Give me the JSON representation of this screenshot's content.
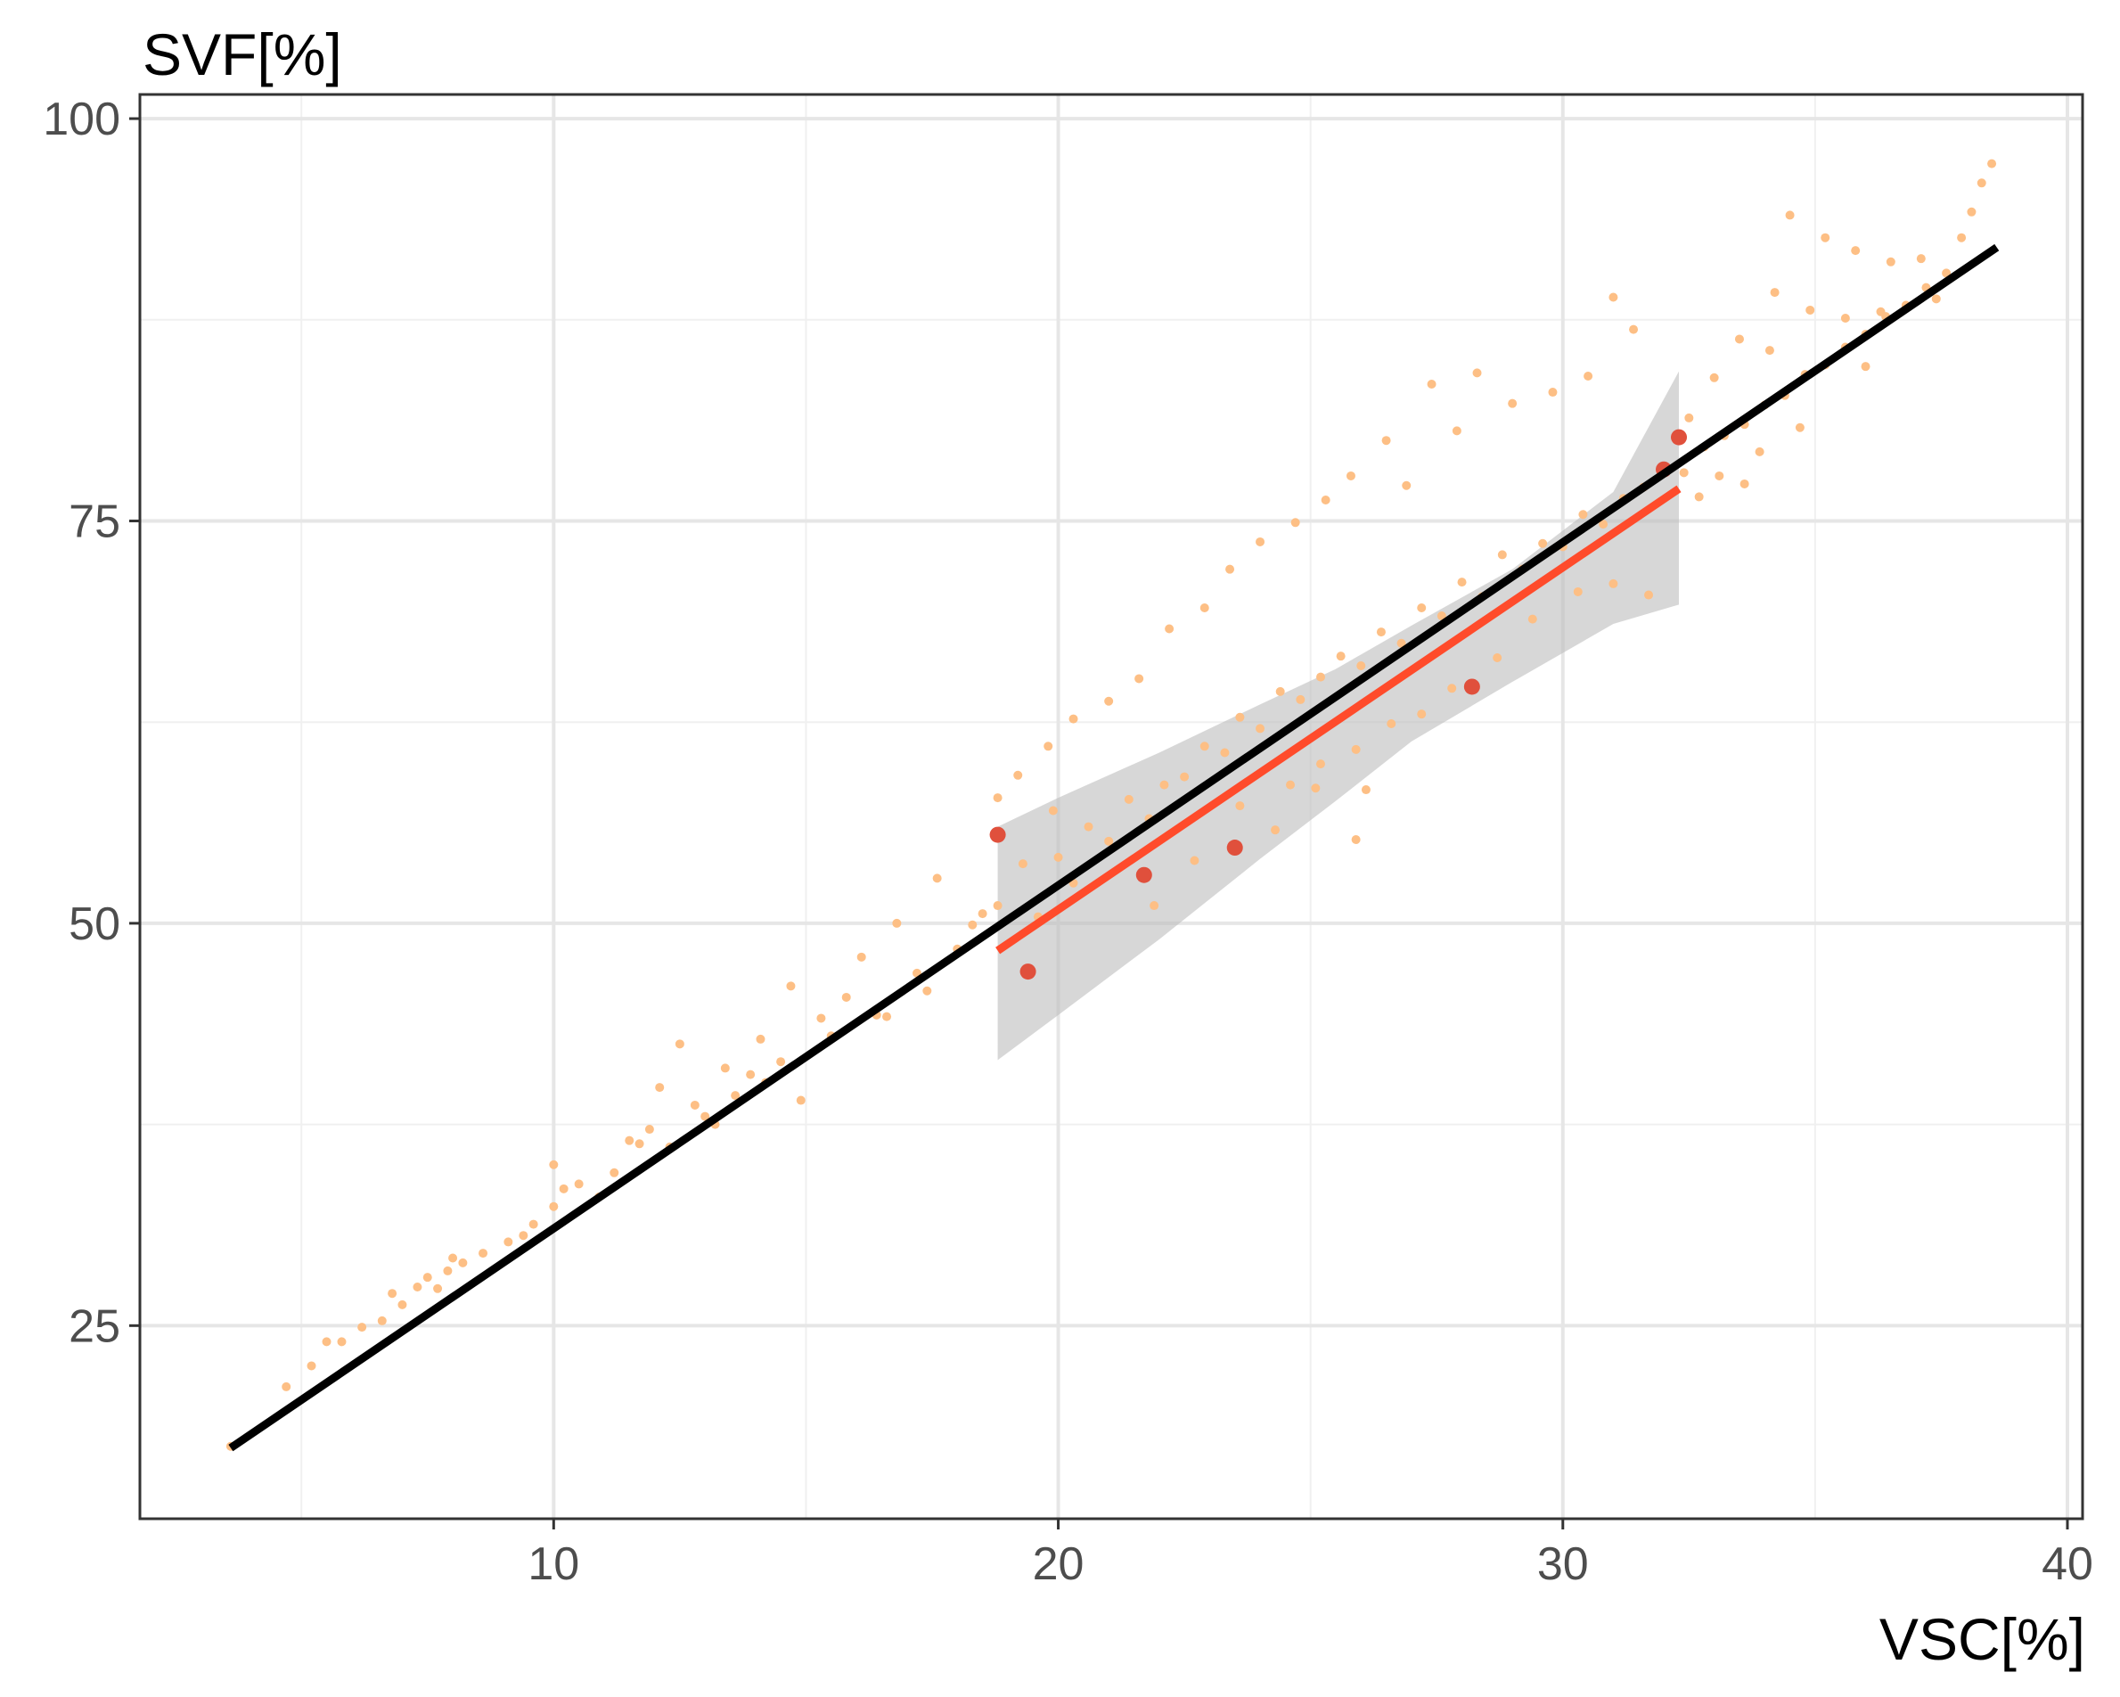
{
  "chart_data": {
    "type": "scatter",
    "title": "",
    "xlabel": "VSC[%]",
    "ylabel": "SVF[%]",
    "xlim": [
      1.8,
      40.3
    ],
    "ylim": [
      13.0,
      101.5
    ],
    "x_ticks": [
      10,
      20,
      30,
      40
    ],
    "y_ticks": [
      25,
      50,
      75,
      100
    ],
    "x_tick_labels": [
      "10",
      "20",
      "30",
      "40"
    ],
    "y_tick_labels": [
      "25",
      "50",
      "75",
      "100"
    ],
    "grid": true,
    "legend": "none",
    "colors": {
      "simulated_points": "#fdbf85",
      "measured_points": "#e0503c",
      "overall_fit": "#000000",
      "measured_fit": "#ff4b2b",
      "confidence_band": "#bdbdbd"
    },
    "series": [
      {
        "type": "scatter",
        "color": "#fdbf85",
        "points": [
          [
            3.6,
            17.5
          ],
          [
            4.7,
            21.2
          ],
          [
            5.2,
            22.5
          ],
          [
            5.8,
            24.0
          ],
          [
            6.2,
            24.9
          ],
          [
            6.6,
            25.3
          ],
          [
            7.0,
            26.3
          ],
          [
            7.3,
            27.4
          ],
          [
            7.5,
            28.0
          ],
          [
            7.7,
            27.3
          ],
          [
            7.9,
            28.4
          ],
          [
            8.2,
            28.9
          ],
          [
            8.6,
            29.5
          ],
          [
            9.1,
            30.2
          ],
          [
            9.6,
            31.3
          ],
          [
            10.0,
            32.4
          ],
          [
            10.0,
            35.0
          ],
          [
            10.2,
            33.5
          ],
          [
            10.5,
            33.8
          ],
          [
            10.9,
            33.0
          ],
          [
            11.2,
            34.5
          ],
          [
            11.5,
            36.5
          ],
          [
            11.9,
            37.2
          ],
          [
            12.1,
            39.8
          ],
          [
            12.3,
            36.1
          ],
          [
            12.5,
            42.5
          ],
          [
            12.8,
            38.7
          ],
          [
            13.2,
            37.5
          ],
          [
            13.4,
            41.0
          ],
          [
            13.6,
            39.3
          ],
          [
            13.9,
            40.6
          ],
          [
            14.1,
            42.8
          ],
          [
            14.5,
            41.4
          ],
          [
            14.7,
            46.1
          ],
          [
            14.9,
            39.0
          ],
          [
            15.3,
            44.1
          ],
          [
            15.8,
            45.4
          ],
          [
            16.1,
            47.9
          ],
          [
            16.4,
            44.3
          ],
          [
            16.8,
            50.0
          ],
          [
            17.2,
            46.9
          ],
          [
            17.6,
            52.8
          ],
          [
            18.0,
            48.4
          ],
          [
            18.3,
            49.9
          ],
          [
            18.5,
            50.6
          ],
          [
            18.8,
            51.1
          ],
          [
            19.3,
            53.7
          ],
          [
            19.6,
            50.4
          ],
          [
            20.0,
            54.1
          ],
          [
            20.3,
            52.5
          ],
          [
            20.6,
            56.0
          ],
          [
            21.0,
            55.1
          ],
          [
            21.4,
            57.7
          ],
          [
            21.8,
            56.5
          ],
          [
            22.1,
            58.6
          ],
          [
            22.5,
            59.1
          ],
          [
            22.9,
            61.0
          ],
          [
            23.3,
            60.6
          ],
          [
            23.6,
            62.8
          ],
          [
            24.0,
            62.1
          ],
          [
            24.4,
            64.4
          ],
          [
            24.8,
            63.9
          ],
          [
            25.2,
            65.3
          ],
          [
            25.6,
            66.6
          ],
          [
            26.0,
            66.0
          ],
          [
            26.4,
            68.1
          ],
          [
            26.8,
            67.4
          ],
          [
            27.2,
            69.6
          ],
          [
            27.6,
            69.1
          ],
          [
            28.0,
            71.2
          ],
          [
            28.4,
            70.3
          ],
          [
            28.8,
            72.9
          ],
          [
            29.2,
            72.0
          ],
          [
            29.6,
            73.6
          ],
          [
            30.0,
            73.4
          ],
          [
            30.4,
            75.4
          ],
          [
            30.8,
            74.8
          ],
          [
            31.2,
            76.4
          ],
          [
            31.6,
            77.1
          ],
          [
            32.0,
            78.3
          ],
          [
            32.4,
            78.0
          ],
          [
            32.8,
            79.6
          ],
          [
            33.2,
            80.3
          ],
          [
            33.6,
            81.0
          ],
          [
            34.0,
            82.2
          ],
          [
            34.4,
            82.8
          ],
          [
            34.8,
            84.1
          ],
          [
            35.2,
            84.7
          ],
          [
            35.6,
            85.8
          ],
          [
            36.0,
            86.6
          ],
          [
            36.4,
            87.7
          ],
          [
            36.8,
            88.4
          ],
          [
            37.2,
            89.5
          ],
          [
            37.6,
            90.4
          ],
          [
            37.9,
            92.6
          ],
          [
            38.1,
            94.2
          ],
          [
            38.3,
            96.0
          ],
          [
            38.5,
            97.2
          ],
          [
            34.5,
            94.0
          ],
          [
            35.2,
            92.6
          ],
          [
            35.8,
            91.8
          ],
          [
            36.5,
            91.1
          ],
          [
            37.1,
            91.3
          ],
          [
            34.2,
            89.2
          ],
          [
            34.9,
            88.1
          ],
          [
            35.6,
            87.6
          ],
          [
            36.3,
            88.0
          ],
          [
            33.5,
            86.3
          ],
          [
            34.1,
            85.6
          ],
          [
            33.0,
            83.9
          ],
          [
            32.5,
            81.4
          ],
          [
            31.0,
            88.9
          ],
          [
            31.4,
            86.9
          ],
          [
            30.5,
            84.0
          ],
          [
            29.8,
            83.0
          ],
          [
            29.0,
            82.3
          ],
          [
            28.3,
            84.2
          ],
          [
            27.4,
            83.5
          ],
          [
            27.9,
            80.6
          ],
          [
            26.5,
            80.0
          ],
          [
            26.9,
            77.2
          ],
          [
            25.8,
            77.8
          ],
          [
            25.3,
            76.3
          ],
          [
            24.7,
            74.9
          ],
          [
            24.0,
            73.7
          ],
          [
            23.4,
            72.0
          ],
          [
            22.9,
            69.6
          ],
          [
            22.2,
            68.3
          ],
          [
            21.6,
            65.2
          ],
          [
            21.0,
            63.8
          ],
          [
            20.3,
            62.7
          ],
          [
            19.8,
            61.0
          ],
          [
            19.2,
            59.2
          ],
          [
            18.8,
            57.8
          ],
          [
            23.6,
            57.3
          ],
          [
            24.3,
            55.8
          ],
          [
            25.1,
            58.4
          ],
          [
            25.9,
            55.2
          ],
          [
            26.1,
            58.3
          ],
          [
            21.9,
            51.1
          ],
          [
            22.7,
            53.9
          ],
          [
            19.9,
            57.0
          ],
          [
            29.4,
            68.9
          ],
          [
            30.3,
            70.6
          ],
          [
            31.0,
            71.1
          ],
          [
            31.7,
            70.4
          ],
          [
            28.7,
            66.5
          ],
          [
            27.8,
            64.6
          ],
          [
            27.2,
            63.0
          ],
          [
            26.6,
            62.4
          ],
          [
            25.9,
            60.8
          ],
          [
            25.2,
            59.9
          ],
          [
            24.6,
            58.6
          ],
          [
            33.6,
            77.3
          ],
          [
            33.9,
            79.3
          ],
          [
            34.7,
            80.8
          ],
          [
            32.7,
            76.5
          ],
          [
            33.1,
            77.8
          ],
          [
            36.0,
            84.6
          ],
          [
            37.4,
            88.8
          ],
          [
            15.5,
            43.0
          ],
          [
            16.6,
            44.2
          ],
          [
            17.4,
            45.8
          ],
          [
            14.2,
            40.1
          ],
          [
            13.0,
            38.0
          ],
          [
            11.7,
            36.3
          ],
          [
            9.4,
            30.6
          ],
          [
            8.0,
            29.2
          ],
          [
            6.8,
            27.0
          ],
          [
            5.5,
            24.0
          ]
        ]
      },
      {
        "type": "scatter",
        "color": "#e0503c",
        "points": [
          [
            18.8,
            55.5
          ],
          [
            19.4,
            47.0
          ],
          [
            21.7,
            53.0
          ],
          [
            23.5,
            54.7
          ],
          [
            28.2,
            64.7
          ],
          [
            32.0,
            78.2
          ],
          [
            32.3,
            80.2
          ]
        ]
      },
      {
        "type": "line",
        "color": "#000000",
        "points": [
          [
            3.6,
            17.4
          ],
          [
            38.6,
            92.0
          ]
        ]
      },
      {
        "type": "line",
        "color": "#ff4b2b",
        "points": [
          [
            18.8,
            48.3
          ],
          [
            32.3,
            77.0
          ]
        ]
      },
      {
        "type": "area",
        "color": "#bdbdbd",
        "upper": [
          [
            18.8,
            56.0
          ],
          [
            20.0,
            57.8
          ],
          [
            22.0,
            60.6
          ],
          [
            24.0,
            63.6
          ],
          [
            25.5,
            65.8
          ],
          [
            27.0,
            68.5
          ],
          [
            29.0,
            72.0
          ],
          [
            31.0,
            76.8
          ],
          [
            32.3,
            84.3
          ]
        ],
        "lower": [
          [
            18.8,
            41.5
          ],
          [
            20.0,
            44.3
          ],
          [
            22.0,
            49.0
          ],
          [
            24.0,
            54.0
          ],
          [
            25.5,
            57.6
          ],
          [
            27.0,
            61.3
          ],
          [
            29.0,
            65.0
          ],
          [
            31.0,
            68.6
          ],
          [
            32.3,
            69.8
          ]
        ]
      }
    ]
  }
}
